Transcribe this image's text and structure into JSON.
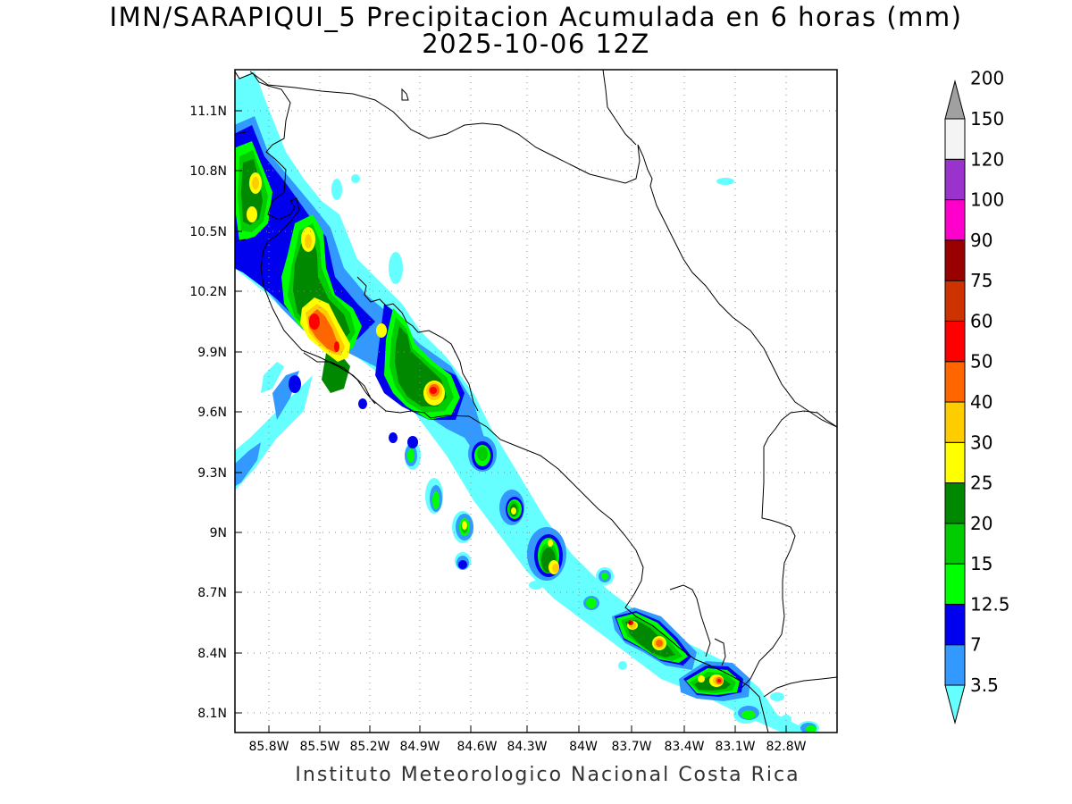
{
  "title": {
    "line1": "IMN/SARAPIQUI_5 Precipitacion Acumulada en 6 horas (mm)",
    "line2": "2025-10-06 12Z"
  },
  "footer": "Instituto Meteorologico Nacional Costa Rica",
  "map": {
    "lon_labels": [
      "85.8W",
      "85.5W",
      "85.2W",
      "84.9W",
      "84.6W",
      "84.3W",
      "84W",
      "83.7W",
      "83.4W",
      "83.1W",
      "82.8W"
    ],
    "lat_labels": [
      "11.1N",
      "10.8N",
      "10.5N",
      "10.2N",
      "9.9N",
      "9.6N",
      "9.3N",
      "9N",
      "8.7N",
      "8.4N",
      "8.1N"
    ],
    "grid": "dotted"
  },
  "colorbar": {
    "levels": [
      "3.5",
      "7",
      "12.5",
      "15",
      "20",
      "25",
      "30",
      "40",
      "50",
      "60",
      "75",
      "90",
      "100",
      "120",
      "150",
      "200"
    ],
    "colors": [
      "#66ffff",
      "#3399ff",
      "#0000ee",
      "#00ff00",
      "#00cc00",
      "#008800",
      "#ffff00",
      "#ffcc00",
      "#ff6600",
      "#ff0000",
      "#cc3300",
      "#990000",
      "#ff00cc",
      "#9933cc",
      "#f4f4f4",
      "#a0a0a0"
    ]
  }
}
